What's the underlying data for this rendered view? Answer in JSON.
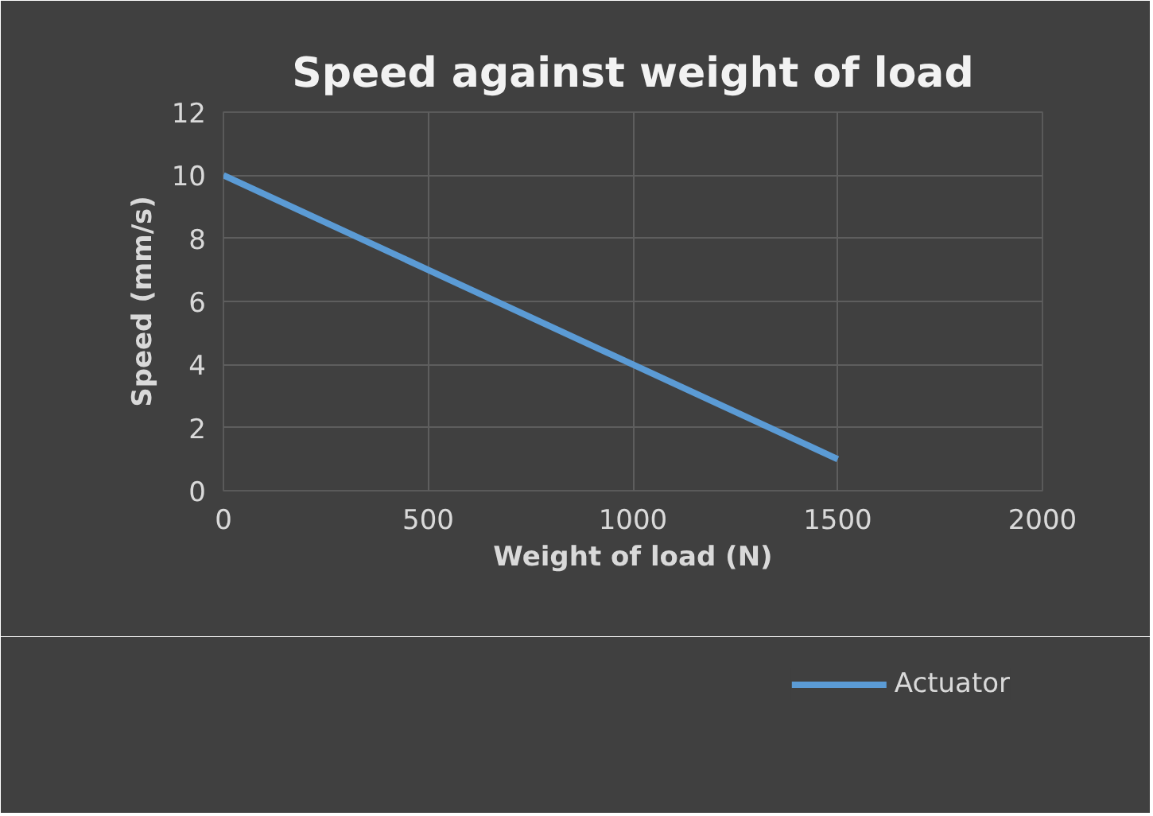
{
  "chart_data": {
    "type": "line",
    "title": "Speed against weight of load",
    "xlabel": "Weight of load (N)",
    "ylabel": "Speed (mm/s)",
    "x": [
      0,
      500,
      1000,
      1500
    ],
    "series": [
      {
        "name": "Actuator",
        "color": "#5b9bd5",
        "values": [
          10,
          7,
          4,
          1
        ]
      }
    ],
    "xlim": [
      0,
      2000
    ],
    "xticks": [
      0,
      500,
      1000,
      1500,
      2000
    ],
    "ylim": [
      0,
      12
    ],
    "yticks": [
      0,
      2,
      4,
      6,
      8,
      10,
      12
    ],
    "grid": true,
    "legend": "bottom right",
    "marker": "none",
    "line_style": "solid"
  }
}
